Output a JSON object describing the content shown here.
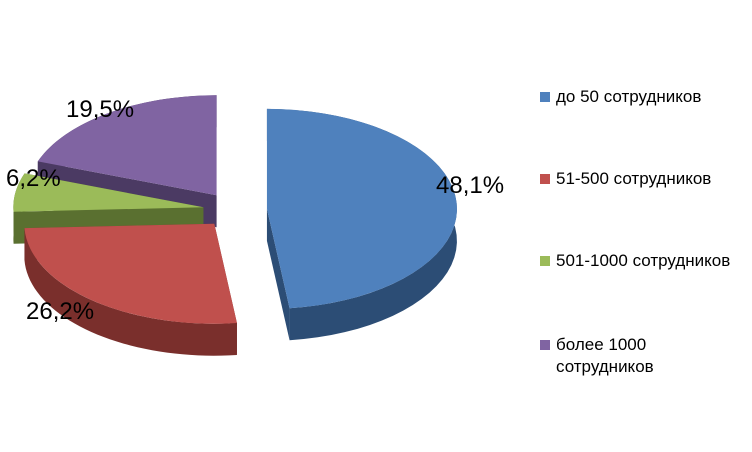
{
  "chart_data": {
    "type": "pie",
    "style": "3d-exploded",
    "categories": [
      "до 50 сотрудников",
      "51-500 сотрудников",
      "501-1000 сотрудников",
      "более 1000 сотрудников"
    ],
    "values": [
      48.1,
      26.2,
      6.2,
      19.5
    ],
    "data_labels": [
      "48,1%",
      "26,2%",
      "6,2%",
      "19,5%"
    ],
    "colors": [
      "#4F81BD",
      "#C0504D",
      "#9BBB59",
      "#8064A2"
    ],
    "dark_colors": [
      "#2C4D75",
      "#7A2F2C",
      "#5A7030",
      "#4B3A63"
    ],
    "legend_position": "right",
    "title": ""
  },
  "legend": {
    "items": [
      {
        "text": "до 50 сотрудников"
      },
      {
        "text": "51-500 сотрудников"
      },
      {
        "text": "501-1000 сотрудников"
      },
      {
        "text": "более 1000 сотрудников"
      }
    ]
  }
}
